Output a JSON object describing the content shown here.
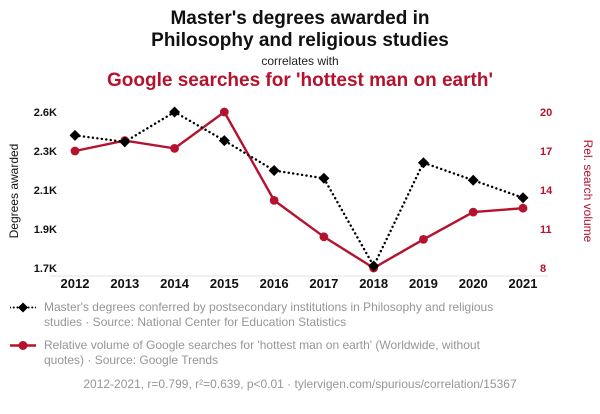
{
  "header": {
    "title_line1": "Master's degrees awarded in",
    "title_line2": "Philosophy and religious studies",
    "subtitle": "correlates with",
    "secondary_title": "Google searches for 'hottest man on earth'"
  },
  "colors": {
    "accent_red": "#b5122e",
    "text_gray": "#969696",
    "black": "#111111"
  },
  "chart_data": {
    "type": "line",
    "title": "Master's degrees awarded in Philosophy and religious studies correlates with Google searches for 'hottest man on earth'",
    "x": [
      2012,
      2013,
      2014,
      2015,
      2016,
      2017,
      2018,
      2019,
      2020,
      2021
    ],
    "left_axis": {
      "label": "Degrees awarded",
      "tick_labels": [
        "2.6K",
        "2.3K",
        "2.1K",
        "1.9K",
        "1.7K"
      ],
      "tick_values": [
        2.6,
        2.3,
        2.1,
        1.9,
        1.7
      ],
      "units": "thousands of degrees"
    },
    "right_axis": {
      "label": "Rel. search volume",
      "tick_labels": [
        "20",
        "17",
        "14",
        "11",
        "8"
      ],
      "tick_values": [
        20,
        17,
        14,
        11,
        8
      ]
    },
    "grid": false,
    "legend_position": "below",
    "series": [
      {
        "name": "Master's degrees awarded in Philosophy and religious studies",
        "axis": "left",
        "color": "#000000",
        "style": "dotted",
        "marker": "diamond",
        "values": [
          2.42,
          2.37,
          2.6,
          2.38,
          2.2,
          2.16,
          1.71,
          2.24,
          2.15,
          2.06
        ]
      },
      {
        "name": "Google searches for 'hottest man on earth'",
        "axis": "right",
        "color": "#b5122e",
        "style": "solid",
        "marker": "circle",
        "values": [
          17.0,
          17.8,
          17.2,
          20.0,
          13.2,
          10.4,
          8.0,
          10.2,
          12.3,
          12.6
        ]
      }
    ]
  },
  "legend": {
    "entries": [
      {
        "text": "Master's degrees conferred by postsecondary institutions in Philosophy and religious studies · Source: National Center for Education Statistics"
      },
      {
        "text": "Relative volume of Google searches for 'hottest man on earth' (Worldwide, without quotes) · Source: Google Trends"
      }
    ]
  },
  "footer": {
    "text": "2012-2021, r=0.799, r²=0.639, p<0.01 · tylervigen.com/spurious/correlation/15367"
  }
}
